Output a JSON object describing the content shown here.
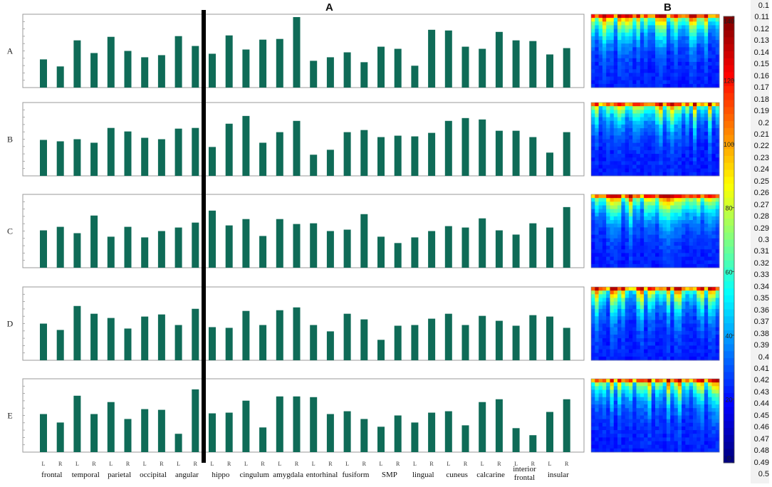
{
  "chart_data": [
    {
      "type": "bar",
      "panel_label": "A",
      "row_labels": [
        "A",
        "B",
        "C",
        "D",
        "E"
      ],
      "regions": [
        "frontal",
        "temporal",
        "parietal",
        "occipital",
        "angular",
        "hippo",
        "cingulum",
        "amygdala",
        "entorhinal",
        "fusiform",
        "SMP",
        "lingual",
        "cuneus",
        "calcarine",
        "interior frontal",
        "insular"
      ],
      "hemispheres": [
        "L",
        "R",
        "L",
        "R",
        "L",
        "R",
        "L",
        "R",
        "L",
        "R",
        "L",
        "R",
        "L",
        "R",
        "L",
        "R",
        "L",
        "R",
        "L",
        "R",
        "L",
        "R",
        "L",
        "R",
        "L",
        "R",
        "L",
        "R",
        "L",
        "R",
        "L",
        "R"
      ],
      "ylim": [
        0,
        1
      ],
      "series": [
        {
          "values": [
            0.4,
            0.3,
            0.67,
            0.49,
            0.72,
            0.52,
            0.43,
            0.46,
            0.73,
            0.59,
            0.48,
            0.74,
            0.54,
            0.68,
            0.69,
            1.0,
            0.38,
            0.43,
            0.5,
            0.36,
            0.58,
            0.55,
            0.31,
            0.82,
            0.81,
            0.58,
            0.55,
            0.79,
            0.67,
            0.66,
            0.47,
            0.56
          ]
        },
        {
          "values": [
            0.51,
            0.49,
            0.52,
            0.47,
            0.68,
            0.63,
            0.54,
            0.52,
            0.67,
            0.68,
            0.41,
            0.74,
            0.85,
            0.47,
            0.62,
            0.78,
            0.3,
            0.37,
            0.62,
            0.65,
            0.55,
            0.57,
            0.56,
            0.61,
            0.78,
            0.82,
            0.8,
            0.64,
            0.64,
            0.55,
            0.33,
            0.62
          ]
        },
        {
          "values": [
            0.53,
            0.58,
            0.49,
            0.74,
            0.44,
            0.58,
            0.43,
            0.52,
            0.57,
            0.64,
            0.81,
            0.6,
            0.69,
            0.45,
            0.69,
            0.62,
            0.63,
            0.52,
            0.54,
            0.76,
            0.44,
            0.35,
            0.43,
            0.52,
            0.59,
            0.57,
            0.7,
            0.53,
            0.47,
            0.63,
            0.57,
            0.86
          ]
        },
        {
          "values": [
            0.52,
            0.43,
            0.77,
            0.66,
            0.6,
            0.45,
            0.62,
            0.65,
            0.5,
            0.73,
            0.47,
            0.46,
            0.7,
            0.5,
            0.71,
            0.75,
            0.5,
            0.41,
            0.66,
            0.58,
            0.29,
            0.49,
            0.5,
            0.59,
            0.66,
            0.5,
            0.63,
            0.56,
            0.49,
            0.64,
            0.62,
            0.46
          ]
        },
        {
          "values": [
            0.54,
            0.42,
            0.8,
            0.54,
            0.71,
            0.47,
            0.61,
            0.6,
            0.26,
            0.89,
            0.55,
            0.56,
            0.73,
            0.35,
            0.79,
            0.79,
            0.78,
            0.54,
            0.58,
            0.47,
            0.36,
            0.52,
            0.42,
            0.56,
            0.58,
            0.38,
            0.71,
            0.75,
            0.34,
            0.24,
            0.57,
            0.75
          ]
        }
      ]
    },
    {
      "type": "heatmap",
      "panel_label": "B",
      "colorbar": {
        "min": 0,
        "max": 140,
        "ticks": [
          0,
          20,
          40,
          60,
          80,
          100,
          120,
          140
        ]
      },
      "threshold_labels": [
        "0.1",
        "0.11",
        "0.12",
        "0.13",
        "0.14",
        "0.15",
        "0.16",
        "0.17",
        "0.18",
        "0.19",
        "0.2",
        "0.21",
        "0.22",
        "0.23",
        "0.24",
        "0.25",
        "0.26",
        "0.27",
        "0.28",
        "0.29",
        "0.3",
        "0.31",
        "0.32",
        "0.33",
        "0.34",
        "0.35",
        "0.36",
        "0.37",
        "0.38",
        "0.39",
        "0.4",
        "0.41",
        "0.42",
        "0.43",
        "0.44",
        "0.45",
        "0.46",
        "0.47",
        "0.48",
        "0.49",
        "0.5"
      ],
      "grid": {
        "rows": 20,
        "cols": 34
      },
      "colors": {
        "bar": "#0f6b57",
        "divider": "#000000"
      }
    }
  ]
}
